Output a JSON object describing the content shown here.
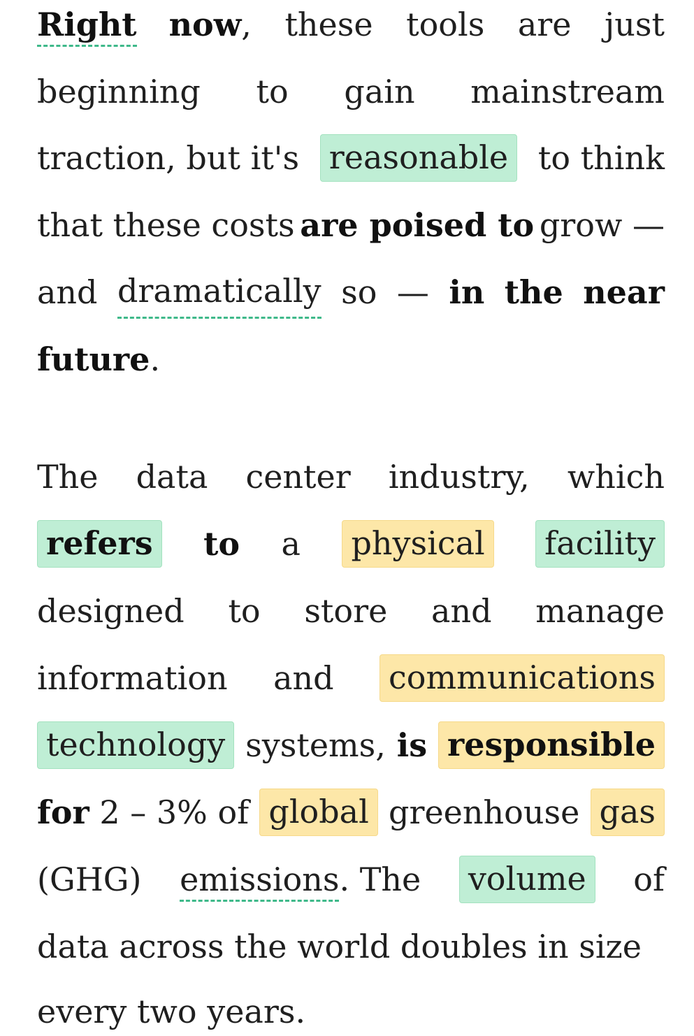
{
  "paragraphs": [
    {
      "lines": [
        [
          "Right now,",
          "these",
          "tools",
          "are",
          "just"
        ],
        [
          "beginning",
          "to",
          "gain",
          "mainstream"
        ],
        [
          "traction, but it's",
          "reasonable",
          "to think"
        ],
        [
          "that these costs",
          "are poised to",
          "grow —"
        ],
        [
          "and",
          "dramatically",
          "so",
          "—",
          "in",
          "the",
          "near"
        ],
        [
          "future."
        ]
      ],
      "words": {
        "right": "Right",
        "now": "now",
        "comma": ",",
        "these": "these",
        "tools": "tools",
        "are": "are",
        "just": "just",
        "beginning": "beginning",
        "to": "to",
        "gain": "gain",
        "mainstream": "mainstream",
        "traction": "traction, but it's",
        "reasonable": "reasonable",
        "to_think": "to think",
        "that_these_costs": "that these costs",
        "are_poised_to": "are poised to",
        "grow": "grow —",
        "and": "and",
        "dramatically": "dramatically",
        "so": "so",
        "dash": "—",
        "in": "in",
        "the": "the",
        "near": "near",
        "future": "future",
        "period": "."
      }
    },
    {
      "words": {
        "the": "The",
        "data": "data",
        "center": "center",
        "industry": "industry,",
        "which": "which",
        "refers": "refers",
        "to": "to",
        "a": "a",
        "physical": "physical",
        "facility": "facility",
        "designed": "designed",
        "to2": "to",
        "store": "store",
        "and": "and",
        "manage": "manage",
        "information": "information",
        "and2": "and",
        "communications": "communications",
        "technology": "technology",
        "systems": "systems,",
        "is": "is",
        "responsible": "responsible",
        "for": "for",
        "pct": "2 – 3% of",
        "global": "global",
        "greenhouse": "greenhouse",
        "gas": "gas",
        "ghg": "(GHG)",
        "emissions": "emissions",
        "period": ".",
        "the2": "The",
        "volume": "volume",
        "of": "of",
        "line_data": "data across the world doubles in size",
        "line_every": "every two years."
      }
    }
  ],
  "colors": {
    "text": "#1f1f1f",
    "highlight_green": "#bfeed5",
    "highlight_yellow": "#fde7a8",
    "underline_dashed": "#3fb98a"
  }
}
